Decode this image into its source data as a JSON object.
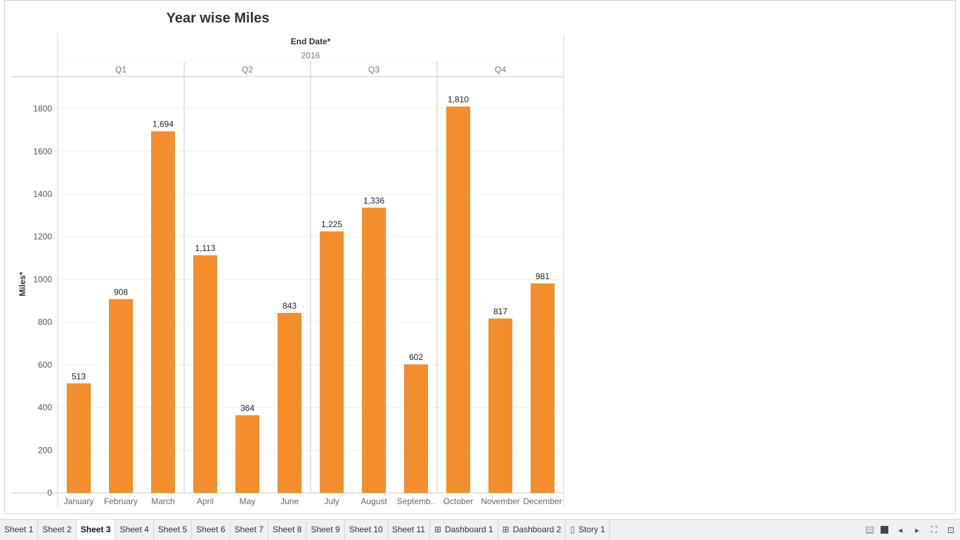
{
  "chart_data": {
    "type": "bar",
    "title": "Year wise Miles",
    "column_header_title": "End Date*",
    "year": "2016",
    "quarters": [
      "Q1",
      "Q2",
      "Q3",
      "Q4"
    ],
    "categories": [
      "January",
      "February",
      "March",
      "April",
      "May",
      "June",
      "July",
      "August",
      "Septemb..",
      "October",
      "November",
      "December"
    ],
    "values": [
      513,
      908,
      1694,
      1113,
      364,
      843,
      1225,
      1336,
      602,
      1810,
      817,
      981
    ],
    "value_labels": [
      "513",
      "908",
      "1,694",
      "1,113",
      "364",
      "843",
      "1,225",
      "1,336",
      "602",
      "1,810",
      "817",
      "981"
    ],
    "ylabel": "Miles*",
    "ylim": [
      0,
      1950
    ],
    "yticks": [
      0,
      200,
      400,
      600,
      800,
      1000,
      1200,
      1400,
      1600,
      1800
    ],
    "bar_color": "#f28e2b",
    "grid": true
  },
  "tabs": [
    {
      "label": "Sheet 1",
      "icon": "",
      "active": false
    },
    {
      "label": "Sheet 2",
      "icon": "",
      "active": false
    },
    {
      "label": "Sheet 3",
      "icon": "",
      "active": true
    },
    {
      "label": "Sheet 4",
      "icon": "",
      "active": false
    },
    {
      "label": "Sheet 5",
      "icon": "",
      "active": false
    },
    {
      "label": "Sheet 6",
      "icon": "",
      "active": false
    },
    {
      "label": "Sheet 7",
      "icon": "",
      "active": false
    },
    {
      "label": "Sheet 8",
      "icon": "",
      "active": false
    },
    {
      "label": "Sheet 9",
      "icon": "",
      "active": false
    },
    {
      "label": "Sheet 10",
      "icon": "",
      "active": false
    },
    {
      "label": "Sheet 11",
      "icon": "",
      "active": false
    },
    {
      "label": "Dashboard 1",
      "icon": "dashboard-icon",
      "active": false
    },
    {
      "label": "Dashboard 2",
      "icon": "dashboard-icon",
      "active": false
    },
    {
      "label": "Story 1",
      "icon": "story-icon",
      "active": false
    }
  ],
  "tab_controls": [
    "show-filmstrip-icon",
    "show-tabs-icon",
    "previous-tab-icon",
    "next-tab-icon",
    "fullscreen-icon",
    "presentation-mode-icon"
  ]
}
